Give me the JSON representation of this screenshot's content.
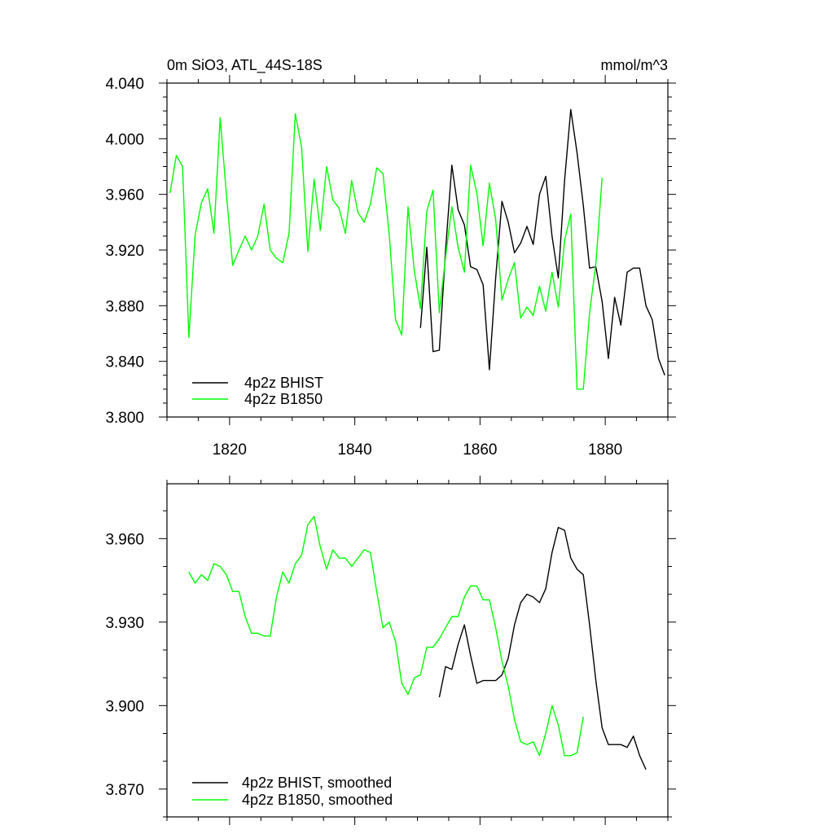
{
  "colors": {
    "bhist": "#000000",
    "b1850": "#00ff00",
    "frame": "#000000"
  },
  "chart_data": [
    {
      "type": "line",
      "title": "0m SiO3, ATL_44S-18S",
      "units": "mmol/m^3",
      "xlim": [
        1810,
        1890
      ],
      "ylim": [
        3.8,
        4.04
      ],
      "x_ticks": [
        1820,
        1840,
        1860,
        1880
      ],
      "x_tick_labels": [
        "1820",
        "1840",
        "1860",
        "1880"
      ],
      "y_ticks": [
        3.8,
        3.84,
        3.88,
        3.92,
        3.96,
        4.0,
        4.04
      ],
      "y_tick_labels": [
        "3.800",
        "3.840",
        "3.880",
        "3.920",
        "3.960",
        "4.000",
        "4.040"
      ],
      "series": [
        {
          "name": "4p2z BHIST",
          "color": "#000000",
          "x": [
            1850.5,
            1851.5,
            1852.5,
            1853.5,
            1854.5,
            1855.5,
            1856.5,
            1857.5,
            1858.5,
            1859.5,
            1860.5,
            1861.5,
            1862.5,
            1863.5,
            1864.5,
            1865.5,
            1866.5,
            1867.5,
            1868.5,
            1869.5,
            1870.5,
            1871.5,
            1872.5,
            1873.5,
            1874.5,
            1875.5,
            1876.5,
            1877.5,
            1878.5,
            1879.5,
            1880.5,
            1881.5,
            1882.5,
            1883.5,
            1884.5,
            1885.5,
            1886.5,
            1887.5,
            1888.5,
            1889.5
          ],
          "y": [
            3.864,
            3.922,
            3.847,
            3.848,
            3.92,
            3.981,
            3.949,
            3.938,
            3.908,
            3.906,
            3.895,
            3.834,
            3.9,
            3.955,
            3.94,
            3.918,
            3.925,
            3.937,
            3.924,
            3.96,
            3.973,
            3.93,
            3.9,
            3.97,
            4.021,
            3.99,
            3.952,
            3.907,
            3.908,
            3.883,
            3.842,
            3.886,
            3.866,
            3.904,
            3.907,
            3.907,
            3.88,
            3.87,
            3.842,
            3.83
          ]
        },
        {
          "name": "4p2z B1850",
          "color": "#00ff00",
          "x": [
            1810.5,
            1811.5,
            1812.5,
            1813.5,
            1814.5,
            1815.5,
            1816.5,
            1817.5,
            1818.5,
            1819.5,
            1820.5,
            1821.5,
            1822.5,
            1823.5,
            1824.5,
            1825.5,
            1826.5,
            1827.5,
            1828.5,
            1829.5,
            1830.5,
            1831.5,
            1832.5,
            1833.5,
            1834.5,
            1835.5,
            1836.5,
            1837.5,
            1838.5,
            1839.5,
            1840.5,
            1841.5,
            1842.5,
            1843.5,
            1844.5,
            1845.5,
            1846.5,
            1847.5,
            1848.5,
            1849.5,
            1850.5,
            1851.5,
            1852.5,
            1853.5,
            1854.5,
            1855.5,
            1856.5,
            1857.5,
            1858.5,
            1859.5,
            1860.5,
            1861.5,
            1862.5,
            1863.5,
            1864.5,
            1865.5,
            1866.5,
            1867.5,
            1868.5,
            1869.5,
            1870.5,
            1871.5,
            1872.5,
            1873.5,
            1874.5,
            1875.5,
            1876.5,
            1877.5,
            1878.5,
            1879.5
          ],
          "y": [
            3.961,
            3.988,
            3.98,
            3.857,
            3.931,
            3.954,
            3.964,
            3.932,
            4.015,
            3.96,
            3.909,
            3.92,
            3.93,
            3.92,
            3.93,
            3.953,
            3.92,
            3.914,
            3.911,
            3.932,
            4.018,
            3.994,
            3.919,
            3.971,
            3.934,
            3.98,
            3.956,
            3.95,
            3.932,
            3.97,
            3.947,
            3.94,
            3.953,
            3.979,
            3.975,
            3.931,
            3.87,
            3.859,
            3.951,
            3.905,
            3.878,
            3.948,
            3.963,
            3.875,
            3.915,
            3.951,
            3.922,
            3.904,
            3.981,
            3.961,
            3.923,
            3.968,
            3.942,
            3.884,
            3.899,
            3.911,
            3.871,
            3.879,
            3.873,
            3.894,
            3.876,
            3.904,
            3.879,
            3.927,
            3.946,
            3.82,
            3.82,
            3.875,
            3.91,
            3.972
          ]
        }
      ]
    },
    {
      "type": "line",
      "xlim": [
        1810,
        1890
      ],
      "ylim": [
        3.86,
        3.9797
      ],
      "x_ticks": [
        1820,
        1840,
        1860,
        1880
      ],
      "y_ticks": [
        3.87,
        3.9,
        3.93,
        3.96
      ],
      "y_tick_labels": [
        "3.870",
        "3.900",
        "3.930",
        "3.960"
      ],
      "series": [
        {
          "name": "4p2z BHIST, smoothed",
          "color": "#000000",
          "x": [
            1853.5,
            1854.5,
            1855.5,
            1856.5,
            1857.5,
            1858.5,
            1859.5,
            1860.5,
            1861.5,
            1862.5,
            1863.5,
            1864.5,
            1865.5,
            1866.5,
            1867.5,
            1868.5,
            1869.5,
            1870.5,
            1871.5,
            1872.5,
            1873.5,
            1874.5,
            1875.5,
            1876.5,
            1877.5,
            1878.5,
            1879.5,
            1880.5,
            1881.5,
            1882.5,
            1883.5,
            1884.5,
            1885.5,
            1886.5
          ],
          "y": [
            3.903,
            3.914,
            3.913,
            3.922,
            3.929,
            3.918,
            3.908,
            3.909,
            3.909,
            3.909,
            3.911,
            3.917,
            3.929,
            3.937,
            3.94,
            3.939,
            3.937,
            3.942,
            3.955,
            3.964,
            3.963,
            3.953,
            3.949,
            3.947,
            3.929,
            3.909,
            3.892,
            3.886,
            3.886,
            3.886,
            3.885,
            3.889,
            3.882,
            3.877
          ]
        },
        {
          "name": "4p2z B1850, smoothed",
          "color": "#00ff00",
          "x": [
            1813.5,
            1814.5,
            1815.5,
            1816.5,
            1817.5,
            1818.5,
            1819.5,
            1820.5,
            1821.5,
            1822.5,
            1823.5,
            1824.5,
            1825.5,
            1826.5,
            1827.5,
            1828.5,
            1829.5,
            1830.5,
            1831.5,
            1832.5,
            1833.5,
            1834.5,
            1835.5,
            1836.5,
            1837.5,
            1838.5,
            1839.5,
            1840.5,
            1841.5,
            1842.5,
            1843.5,
            1844.5,
            1845.5,
            1846.5,
            1847.5,
            1848.5,
            1849.5,
            1850.5,
            1851.5,
            1852.5,
            1853.5,
            1854.5,
            1855.5,
            1856.5,
            1857.5,
            1858.5,
            1859.5,
            1860.5,
            1861.5,
            1862.5,
            1863.5,
            1864.5,
            1865.5,
            1866.5,
            1867.5,
            1868.5,
            1869.5,
            1870.5,
            1871.5,
            1872.5,
            1873.5,
            1874.5,
            1875.5,
            1876.5
          ],
          "y": [
            3.948,
            3.944,
            3.947,
            3.945,
            3.951,
            3.95,
            3.947,
            3.941,
            3.941,
            3.932,
            3.926,
            3.926,
            3.925,
            3.925,
            3.939,
            3.948,
            3.944,
            3.951,
            3.954,
            3.965,
            3.968,
            3.957,
            3.949,
            3.956,
            3.953,
            3.953,
            3.95,
            3.953,
            3.956,
            3.955,
            3.941,
            3.928,
            3.93,
            3.923,
            3.908,
            3.904,
            3.91,
            3.911,
            3.921,
            3.921,
            3.924,
            3.928,
            3.932,
            3.932,
            3.939,
            3.943,
            3.943,
            3.938,
            3.938,
            3.928,
            3.916,
            3.907,
            3.895,
            3.887,
            3.886,
            3.887,
            3.882,
            3.89,
            3.9,
            3.893,
            3.882,
            3.882,
            3.883,
            3.896
          ]
        }
      ]
    }
  ]
}
